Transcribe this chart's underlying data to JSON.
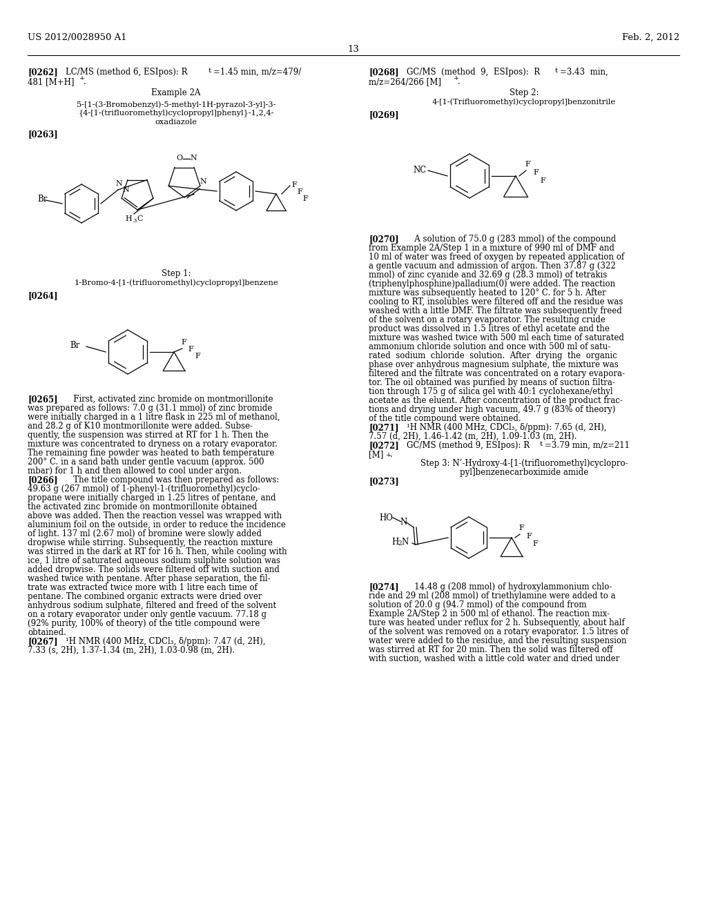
{
  "page_header_left": "US 2012/0028950 A1",
  "page_header_right": "Feb. 2, 2012",
  "page_number": "13",
  "background_color": "#ffffff"
}
